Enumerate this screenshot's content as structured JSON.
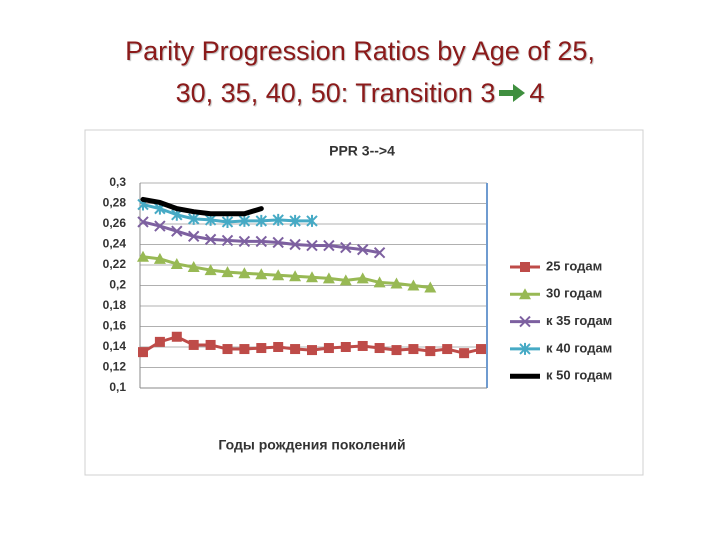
{
  "slide_title": {
    "line1": "Parity Progression Ratios by Age of 25,",
    "line2": "30, 35, 40, 50: Transition 3",
    "after_arrow": "4"
  },
  "chart_data": {
    "type": "line",
    "title": "PPR 3-->4",
    "x_label": "Годы рождения поколений",
    "categories": [
      null,
      null,
      null,
      null,
      null,
      null,
      null,
      null,
      null,
      null,
      null,
      null,
      null,
      null,
      null,
      null,
      null,
      null,
      null,
      null,
      null
    ],
    "ylim": [
      0.1,
      0.3
    ],
    "yticks": [
      {
        "value": 0.1,
        "label": "0,1"
      },
      {
        "value": 0.12,
        "label": "0,12"
      },
      {
        "value": 0.14,
        "label": "0,14"
      },
      {
        "value": 0.16,
        "label": "0,16"
      },
      {
        "value": 0.18,
        "label": "0,18"
      },
      {
        "value": 0.2,
        "label": "0,2"
      },
      {
        "value": 0.22,
        "label": "0,22"
      },
      {
        "value": 0.24,
        "label": "0,24"
      },
      {
        "value": 0.26,
        "label": "0,26"
      },
      {
        "value": 0.28,
        "label": "0,28"
      },
      {
        "value": 0.3,
        "label": "0,3"
      }
    ],
    "grid": true,
    "legend": "right",
    "series": [
      {
        "name": "25 годам",
        "color": "#be4b48",
        "marker": "square",
        "values": [
          0.135,
          0.145,
          0.15,
          0.142,
          0.142,
          0.138,
          0.138,
          0.139,
          0.14,
          0.138,
          0.137,
          0.139,
          0.14,
          0.141,
          0.139,
          0.137,
          0.138,
          0.136,
          0.138,
          0.134,
          0.138
        ]
      },
      {
        "name": "30 годам",
        "color": "#98b954",
        "marker": "triangle",
        "values": [
          0.228,
          0.226,
          0.221,
          0.218,
          0.215,
          0.213,
          0.212,
          0.211,
          0.21,
          0.209,
          0.208,
          0.207,
          0.205,
          0.207,
          0.203,
          0.202,
          0.2,
          0.198,
          null,
          null,
          null
        ]
      },
      {
        "name": "к 35 годам",
        "color": "#7d60a0",
        "marker": "x",
        "values": [
          0.262,
          0.258,
          0.253,
          0.248,
          0.245,
          0.244,
          0.243,
          0.243,
          0.242,
          0.24,
          0.239,
          0.239,
          0.237,
          0.235,
          0.232,
          null,
          null,
          null,
          null,
          null,
          null
        ]
      },
      {
        "name": "к 40 годам",
        "color": "#46aac5",
        "marker": "star",
        "values": [
          0.279,
          0.275,
          0.269,
          0.265,
          0.264,
          0.262,
          0.263,
          0.263,
          0.264,
          0.263,
          0.263,
          null,
          null,
          null,
          null,
          null,
          null,
          null,
          null,
          null,
          null
        ]
      },
      {
        "name": "к 50 годам",
        "color": "#000000",
        "marker": "none",
        "values": [
          0.284,
          0.281,
          0.275,
          0.272,
          0.27,
          0.27,
          0.27,
          0.275,
          null,
          null,
          null,
          null,
          null,
          null,
          null,
          null,
          null,
          null,
          null,
          null,
          null
        ]
      }
    ]
  }
}
